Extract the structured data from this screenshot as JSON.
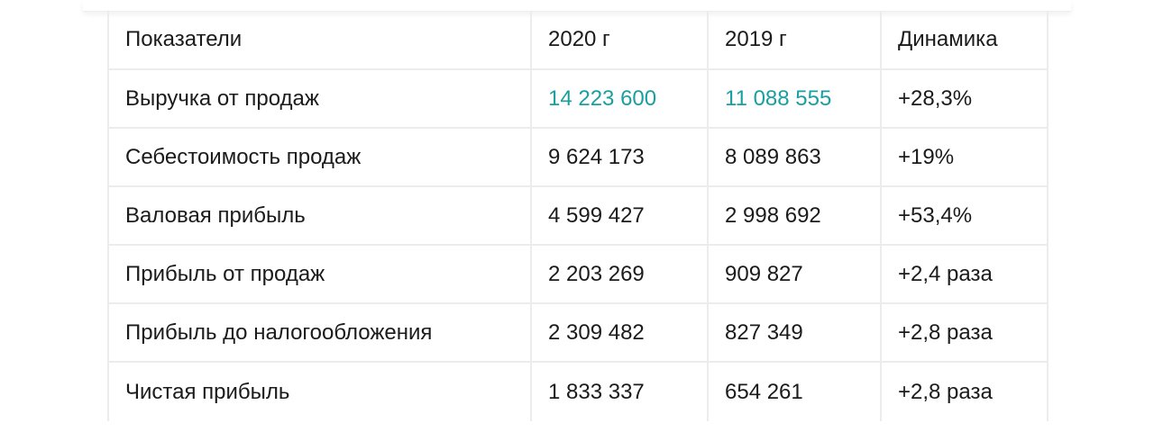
{
  "table": {
    "headers": [
      "Показатели",
      "2020 г",
      "2019 г",
      "Динамика"
    ],
    "rows": [
      {
        "metric": "Выручка от продаж",
        "y2020": "14 223 600",
        "y2019": "11 088 555",
        "change": "+28,3%"
      },
      {
        "metric": "Себестоимость продаж",
        "y2020": "9 624 173",
        "y2019": "8 089 863",
        "change": "+19%"
      },
      {
        "metric": "Валовая прибыль",
        "y2020": "4 599 427",
        "y2019": "2 998 692",
        "change": "+53,4%"
      },
      {
        "metric": "Прибыль от продаж",
        "y2020": "2 203 269",
        "y2019": "909 827",
        "change": "+2,4 раза"
      },
      {
        "metric": "Прибыль до налогообложения",
        "y2020": "2 309 482",
        "y2019": "827 349",
        "change": "+2,8 раза"
      },
      {
        "metric": "Чистая прибыль",
        "y2020": "1 833 337",
        "y2019": "654 261",
        "change": "+2,8 раза"
      }
    ]
  },
  "colors": {
    "link": "#1a9fa0",
    "text": "#1b1b1b",
    "border": "#ececec"
  }
}
